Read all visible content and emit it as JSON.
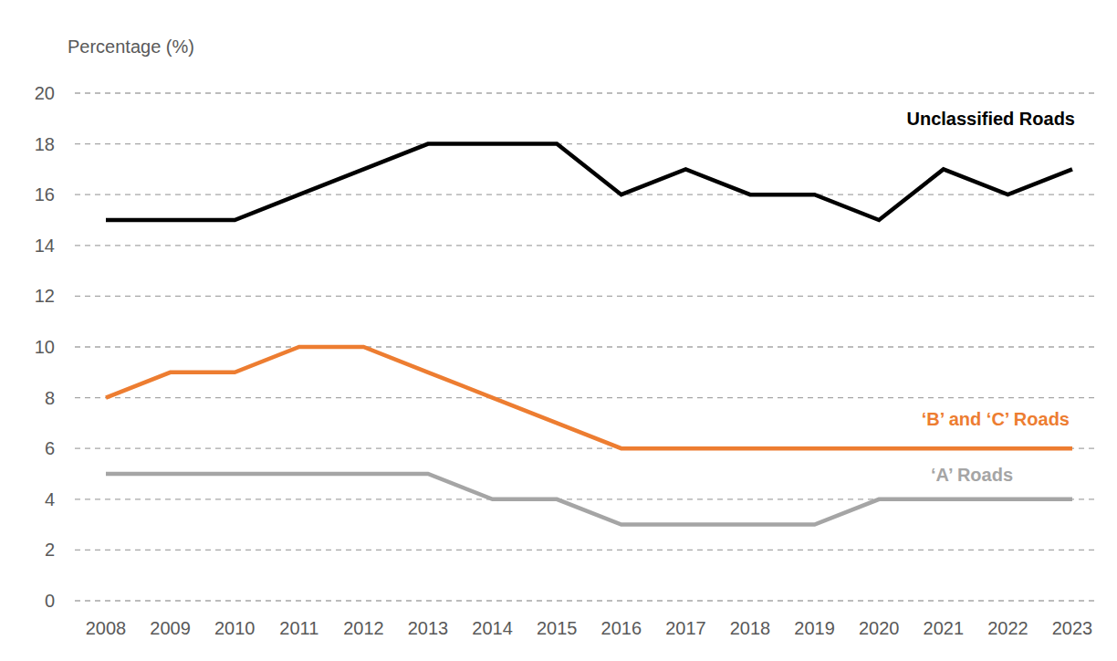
{
  "chart_data": {
    "type": "line",
    "y_label": "Percentage (%)",
    "categories": [
      "2008",
      "2009",
      "2010",
      "2011",
      "2012",
      "2013",
      "2014",
      "2015",
      "2016",
      "2017",
      "2018",
      "2019",
      "2020",
      "2021",
      "2022",
      "2023"
    ],
    "series": [
      {
        "name": "Unclassified Roads",
        "color": "#000000",
        "values": [
          15,
          15,
          15,
          16,
          17,
          18,
          18,
          18,
          16,
          17,
          16,
          16,
          15,
          17,
          16,
          17
        ]
      },
      {
        "name": "‘B’ and ‘C’ Roads",
        "color": "#ed7d31",
        "values": [
          8,
          9,
          9,
          10,
          10,
          9,
          8,
          7,
          6,
          6,
          6,
          6,
          6,
          6,
          6,
          6
        ]
      },
      {
        "name": "‘A’ Roads",
        "color": "#a5a5a5",
        "values": [
          5,
          5,
          5,
          5,
          5,
          5,
          4,
          4,
          3,
          3,
          3,
          3,
          4,
          4,
          4,
          4
        ]
      }
    ],
    "ylim": [
      0,
      20
    ],
    "yticks": [
      0,
      2,
      4,
      6,
      8,
      10,
      12,
      14,
      16,
      18,
      20
    ],
    "grid": true
  }
}
